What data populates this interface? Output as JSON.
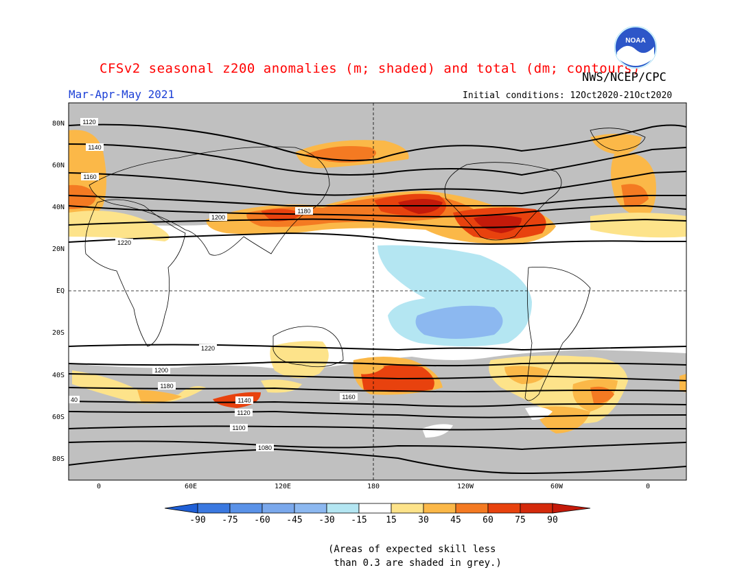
{
  "header": {
    "title": "CFSv2 seasonal z200 anomalies (m; shaded) and total (dm; contours)",
    "agency": "NWS/NCEP/CPC",
    "season": "Mar-Apr-May 2021",
    "initial_conditions": "Initial conditions: 12Oct2020-21Oct2020",
    "logo_text": "NOAA"
  },
  "map": {
    "lat_labels": [
      "80N",
      "60N",
      "40N",
      "20N",
      "EQ",
      "20S",
      "40S",
      "60S",
      "80S"
    ],
    "lon_labels": [
      "0",
      "60E",
      "120E",
      "180",
      "120W",
      "60W",
      "0"
    ],
    "contour_labels": [
      "1120",
      "1140",
      "1160",
      "1180",
      "1200",
      "1220",
      "1220",
      "1200",
      "1180",
      "1160",
      "1140",
      "1120",
      "1100",
      "1080",
      "40"
    ],
    "skill_mask_color": "#c0c0c0",
    "colors": {
      "neg90": "#1f5fd6",
      "neg75": "#3a78e0",
      "neg60": "#5a92e8",
      "neg45": "#8cb8f0",
      "neg30": "#b4e6f2",
      "neutral": "#ffffff",
      "pos30": "#fde38a",
      "pos45": "#fbb848",
      "pos60": "#f47a22",
      "pos75": "#e8420e",
      "pos90": "#c41a0a"
    }
  },
  "colorbar": {
    "labels": [
      "-90",
      "-75",
      "-60",
      "-45",
      "-30",
      "-15",
      "15",
      "30",
      "45",
      "60",
      "75",
      "90"
    ]
  },
  "footnote": "(Areas of expected skill less\n than 0.3 are shaded in grey.)"
}
